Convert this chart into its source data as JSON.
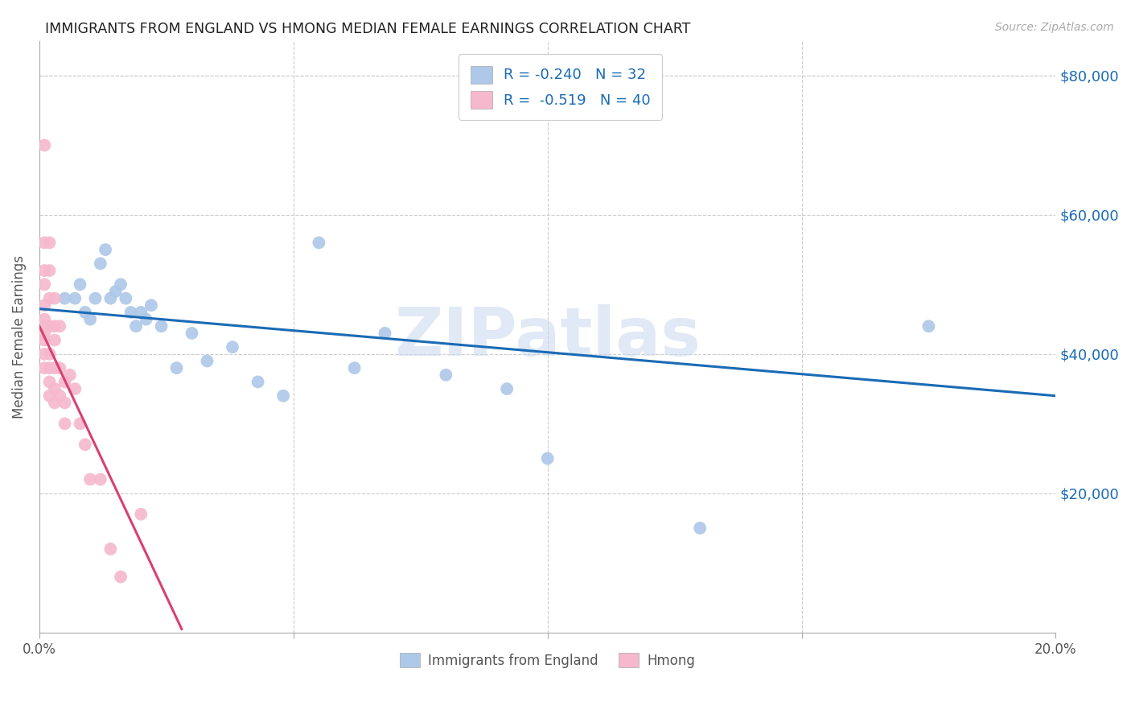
{
  "title": "IMMIGRANTS FROM ENGLAND VS HMONG MEDIAN FEMALE EARNINGS CORRELATION CHART",
  "source": "Source: ZipAtlas.com",
  "ylabel": "Median Female Earnings",
  "ylabel_right_ticks": [
    "$80,000",
    "$60,000",
    "$40,000",
    "$20,000"
  ],
  "ylabel_right_values": [
    80000,
    60000,
    40000,
    20000
  ],
  "xmin": 0.0,
  "xmax": 0.2,
  "ymin": 0,
  "ymax": 85000,
  "legend_england_R": "R = -0.240",
  "legend_england_N": "N = 32",
  "legend_hmong_R": "R =  -0.519",
  "legend_hmong_N": "N = 40",
  "england_color": "#adc8e8",
  "hmong_color": "#f5b8cc",
  "england_line_color": "#1a6bb5",
  "hmong_line_color": "#d94070",
  "england_line_x": [
    0.0,
    0.2
  ],
  "england_line_y": [
    46500,
    34000
  ],
  "hmong_line_x": [
    0.0,
    0.028
  ],
  "hmong_line_y": [
    44000,
    500
  ],
  "england_scatter_x": [
    0.005,
    0.007,
    0.008,
    0.009,
    0.01,
    0.011,
    0.012,
    0.013,
    0.014,
    0.015,
    0.016,
    0.017,
    0.018,
    0.019,
    0.02,
    0.021,
    0.022,
    0.024,
    0.027,
    0.03,
    0.033,
    0.038,
    0.043,
    0.048,
    0.055,
    0.062,
    0.068,
    0.08,
    0.092,
    0.1,
    0.13,
    0.175
  ],
  "england_scatter_y": [
    48000,
    48000,
    50000,
    46000,
    45000,
    48000,
    53000,
    55000,
    48000,
    49000,
    50000,
    48000,
    46000,
    44000,
    46000,
    45000,
    47000,
    44000,
    38000,
    43000,
    39000,
    41000,
    36000,
    34000,
    56000,
    38000,
    43000,
    37000,
    35000,
    25000,
    15000,
    44000
  ],
  "hmong_scatter_x": [
    0.001,
    0.001,
    0.001,
    0.001,
    0.001,
    0.001,
    0.001,
    0.001,
    0.001,
    0.001,
    0.001,
    0.002,
    0.002,
    0.002,
    0.002,
    0.002,
    0.002,
    0.002,
    0.002,
    0.003,
    0.003,
    0.003,
    0.003,
    0.003,
    0.003,
    0.004,
    0.004,
    0.004,
    0.005,
    0.005,
    0.005,
    0.006,
    0.007,
    0.008,
    0.009,
    0.01,
    0.012,
    0.014,
    0.016,
    0.02
  ],
  "hmong_scatter_y": [
    70000,
    56000,
    52000,
    50000,
    47000,
    45000,
    44000,
    43000,
    42000,
    40000,
    38000,
    56000,
    52000,
    48000,
    44000,
    40000,
    38000,
    36000,
    34000,
    48000,
    44000,
    42000,
    38000,
    35000,
    33000,
    44000,
    38000,
    34000,
    36000,
    33000,
    30000,
    37000,
    35000,
    30000,
    27000,
    22000,
    22000,
    12000,
    8000,
    17000
  ],
  "watermark": "ZIPatlas",
  "background_color": "#ffffff",
  "grid_color": "#cccccc"
}
